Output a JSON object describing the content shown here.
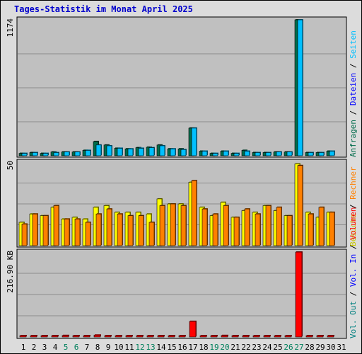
{
  "title": "Tages-Statistik im Monat April 2025",
  "colors": {
    "background": "#dcdcdc",
    "plot_bg": "#c0c0c0",
    "title": "#0000cc",
    "requests": "#006c4b",
    "files": "#00c0ff",
    "pages": "#00e0e0",
    "visits": "#ffff00",
    "hosts": "#ff8000",
    "volume": "#ff0000",
    "weekend_day": "#00805c",
    "weekday": "#000000"
  },
  "chart_data": [
    {
      "type": "bar",
      "title": "Tages-Statistik im Monat April 2025",
      "panel": "hits",
      "y_label": "1174",
      "ylim": [
        0,
        1174
      ],
      "categories": [
        "1",
        "2",
        "3",
        "4",
        "5",
        "6",
        "7",
        "8",
        "9",
        "10",
        "11",
        "12",
        "13",
        "14",
        "15",
        "16",
        "17",
        "18",
        "19",
        "20",
        "21",
        "22",
        "23",
        "24",
        "25",
        "26",
        "27",
        "28",
        "29",
        "30",
        "31"
      ],
      "weekend_days": [
        "5",
        "6",
        "12",
        "13",
        "19",
        "20",
        "26",
        "27"
      ],
      "series": [
        {
          "name": "Anfragen",
          "color": "#006c4b",
          "values": [
            21,
            28,
            21,
            33,
            33,
            33,
            47,
            123,
            93,
            65,
            60,
            70,
            74,
            93,
            60,
            60,
            239,
            40,
            21,
            40,
            21,
            47,
            28,
            28,
            33,
            33,
            1174,
            28,
            28,
            40,
            0
          ]
        },
        {
          "name": "Dateien",
          "color": "#00c0ff",
          "values": [
            21,
            28,
            21,
            28,
            33,
            33,
            47,
            93,
            86,
            65,
            60,
            65,
            70,
            86,
            60,
            54,
            239,
            40,
            21,
            40,
            21,
            40,
            28,
            28,
            33,
            33,
            1174,
            28,
            28,
            40,
            0
          ]
        },
        {
          "name": "Seiten",
          "color": "#00e0e0",
          "values": [
            0,
            0,
            0,
            0,
            0,
            0,
            0,
            0,
            0,
            0,
            0,
            0,
            0,
            0,
            0,
            0,
            0,
            0,
            0,
            0,
            0,
            0,
            0,
            0,
            0,
            0,
            0,
            0,
            0,
            0,
            0
          ]
        }
      ]
    },
    {
      "type": "bar",
      "panel": "visits",
      "y_label": "50",
      "ylim": [
        0,
        50
      ],
      "categories": [
        "1",
        "2",
        "3",
        "4",
        "5",
        "6",
        "7",
        "8",
        "9",
        "10",
        "11",
        "12",
        "13",
        "14",
        "15",
        "16",
        "17",
        "18",
        "19",
        "20",
        "21",
        "22",
        "23",
        "24",
        "25",
        "26",
        "27",
        "28",
        "29",
        "30",
        "31"
      ],
      "series": [
        {
          "name": "Besuche",
          "color": "#ffff00",
          "values": [
            14,
            19,
            18,
            23,
            16,
            17,
            16,
            23,
            24,
            20,
            20,
            20,
            19,
            28,
            25,
            25,
            38,
            23,
            18,
            26,
            17,
            21,
            20,
            24,
            21,
            18,
            49,
            20,
            17,
            20,
            0
          ]
        },
        {
          "name": "Rechner",
          "color": "#ff8000",
          "values": [
            13,
            19,
            18,
            24,
            16,
            16,
            14,
            19,
            22,
            19,
            18,
            18,
            14,
            24,
            25,
            24,
            39,
            22,
            19,
            24,
            17,
            22,
            19,
            24,
            23,
            18,
            48,
            19,
            23,
            20,
            0
          ]
        }
      ]
    },
    {
      "type": "bar",
      "panel": "volume",
      "y_label": "216.90 KB",
      "unit": "KB",
      "ylim": [
        0,
        216.9
      ],
      "categories": [
        "1",
        "2",
        "3",
        "4",
        "5",
        "6",
        "7",
        "8",
        "9",
        "10",
        "11",
        "12",
        "13",
        "14",
        "15",
        "16",
        "17",
        "18",
        "19",
        "20",
        "21",
        "22",
        "23",
        "24",
        "25",
        "26",
        "27",
        "28",
        "29",
        "30",
        "31"
      ],
      "series": [
        {
          "name": "Vol. Out",
          "color": "#ff8000",
          "values": [
            0,
            0,
            0,
            0,
            0,
            0,
            0,
            0,
            0,
            0,
            0,
            0,
            0,
            0,
            0,
            0,
            0,
            0,
            0,
            0,
            0,
            0,
            0,
            0,
            0,
            0,
            0,
            0,
            0,
            0,
            0
          ]
        },
        {
          "name": "Vol. In",
          "color": "#0000ff",
          "values": [
            0,
            0,
            0,
            0,
            0,
            0,
            0,
            0,
            0,
            0,
            0,
            0,
            0,
            0,
            0,
            0,
            0,
            0,
            0,
            0,
            0,
            0,
            0,
            0,
            0,
            0,
            0,
            0,
            0,
            0,
            0
          ]
        },
        {
          "name": "Volumen",
          "color": "#ff0000",
          "values": [
            2,
            2,
            2,
            3,
            4,
            2,
            2,
            5,
            2,
            2,
            2,
            2,
            2,
            2,
            2,
            3,
            40,
            3,
            2,
            4,
            2,
            3,
            2,
            2,
            3,
            3,
            216.9,
            2,
            3,
            3,
            0
          ]
        }
      ]
    }
  ],
  "legend": {
    "top": [
      {
        "label": "Anfragen",
        "color": "#006c4b"
      },
      {
        "label": "Dateien",
        "color": "#0000ff"
      },
      {
        "label": "Seiten",
        "color": "#00c0ff"
      }
    ],
    "middle": [
      {
        "label": "Besuche",
        "color": "#c8c800"
      },
      {
        "label": "Rechner",
        "color": "#ff8000"
      }
    ],
    "bottom": [
      {
        "label": "Vol. Out",
        "color": "#008080"
      },
      {
        "label": "Vol. In",
        "color": "#0000ff"
      },
      {
        "label": "Volumen",
        "color": "#ff0000"
      }
    ]
  }
}
